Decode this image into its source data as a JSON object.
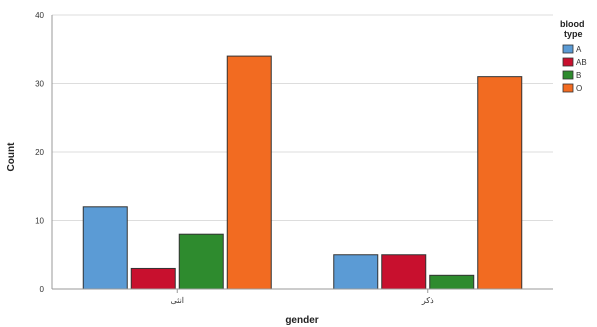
{
  "chart_data": {
    "type": "bar",
    "xlabel": "gender",
    "ylabel": "Count",
    "ylim": [
      0,
      40
    ],
    "yticks": [
      0,
      10,
      20,
      30,
      40
    ],
    "grid": true,
    "legend_placement": "top-right",
    "categories": [
      "انثى",
      "ذكر"
    ],
    "legend_title": [
      "blood",
      "type"
    ],
    "series": [
      {
        "name": "A",
        "color": "#5b9bd5",
        "values": [
          12,
          5
        ]
      },
      {
        "name": "AB",
        "color": "#c8102e",
        "values": [
          3,
          5
        ]
      },
      {
        "name": "B",
        "color": "#2e8b2e",
        "values": [
          8,
          2
        ]
      },
      {
        "name": "O",
        "color": "#f26b21",
        "values": [
          34,
          31
        ]
      }
    ]
  }
}
